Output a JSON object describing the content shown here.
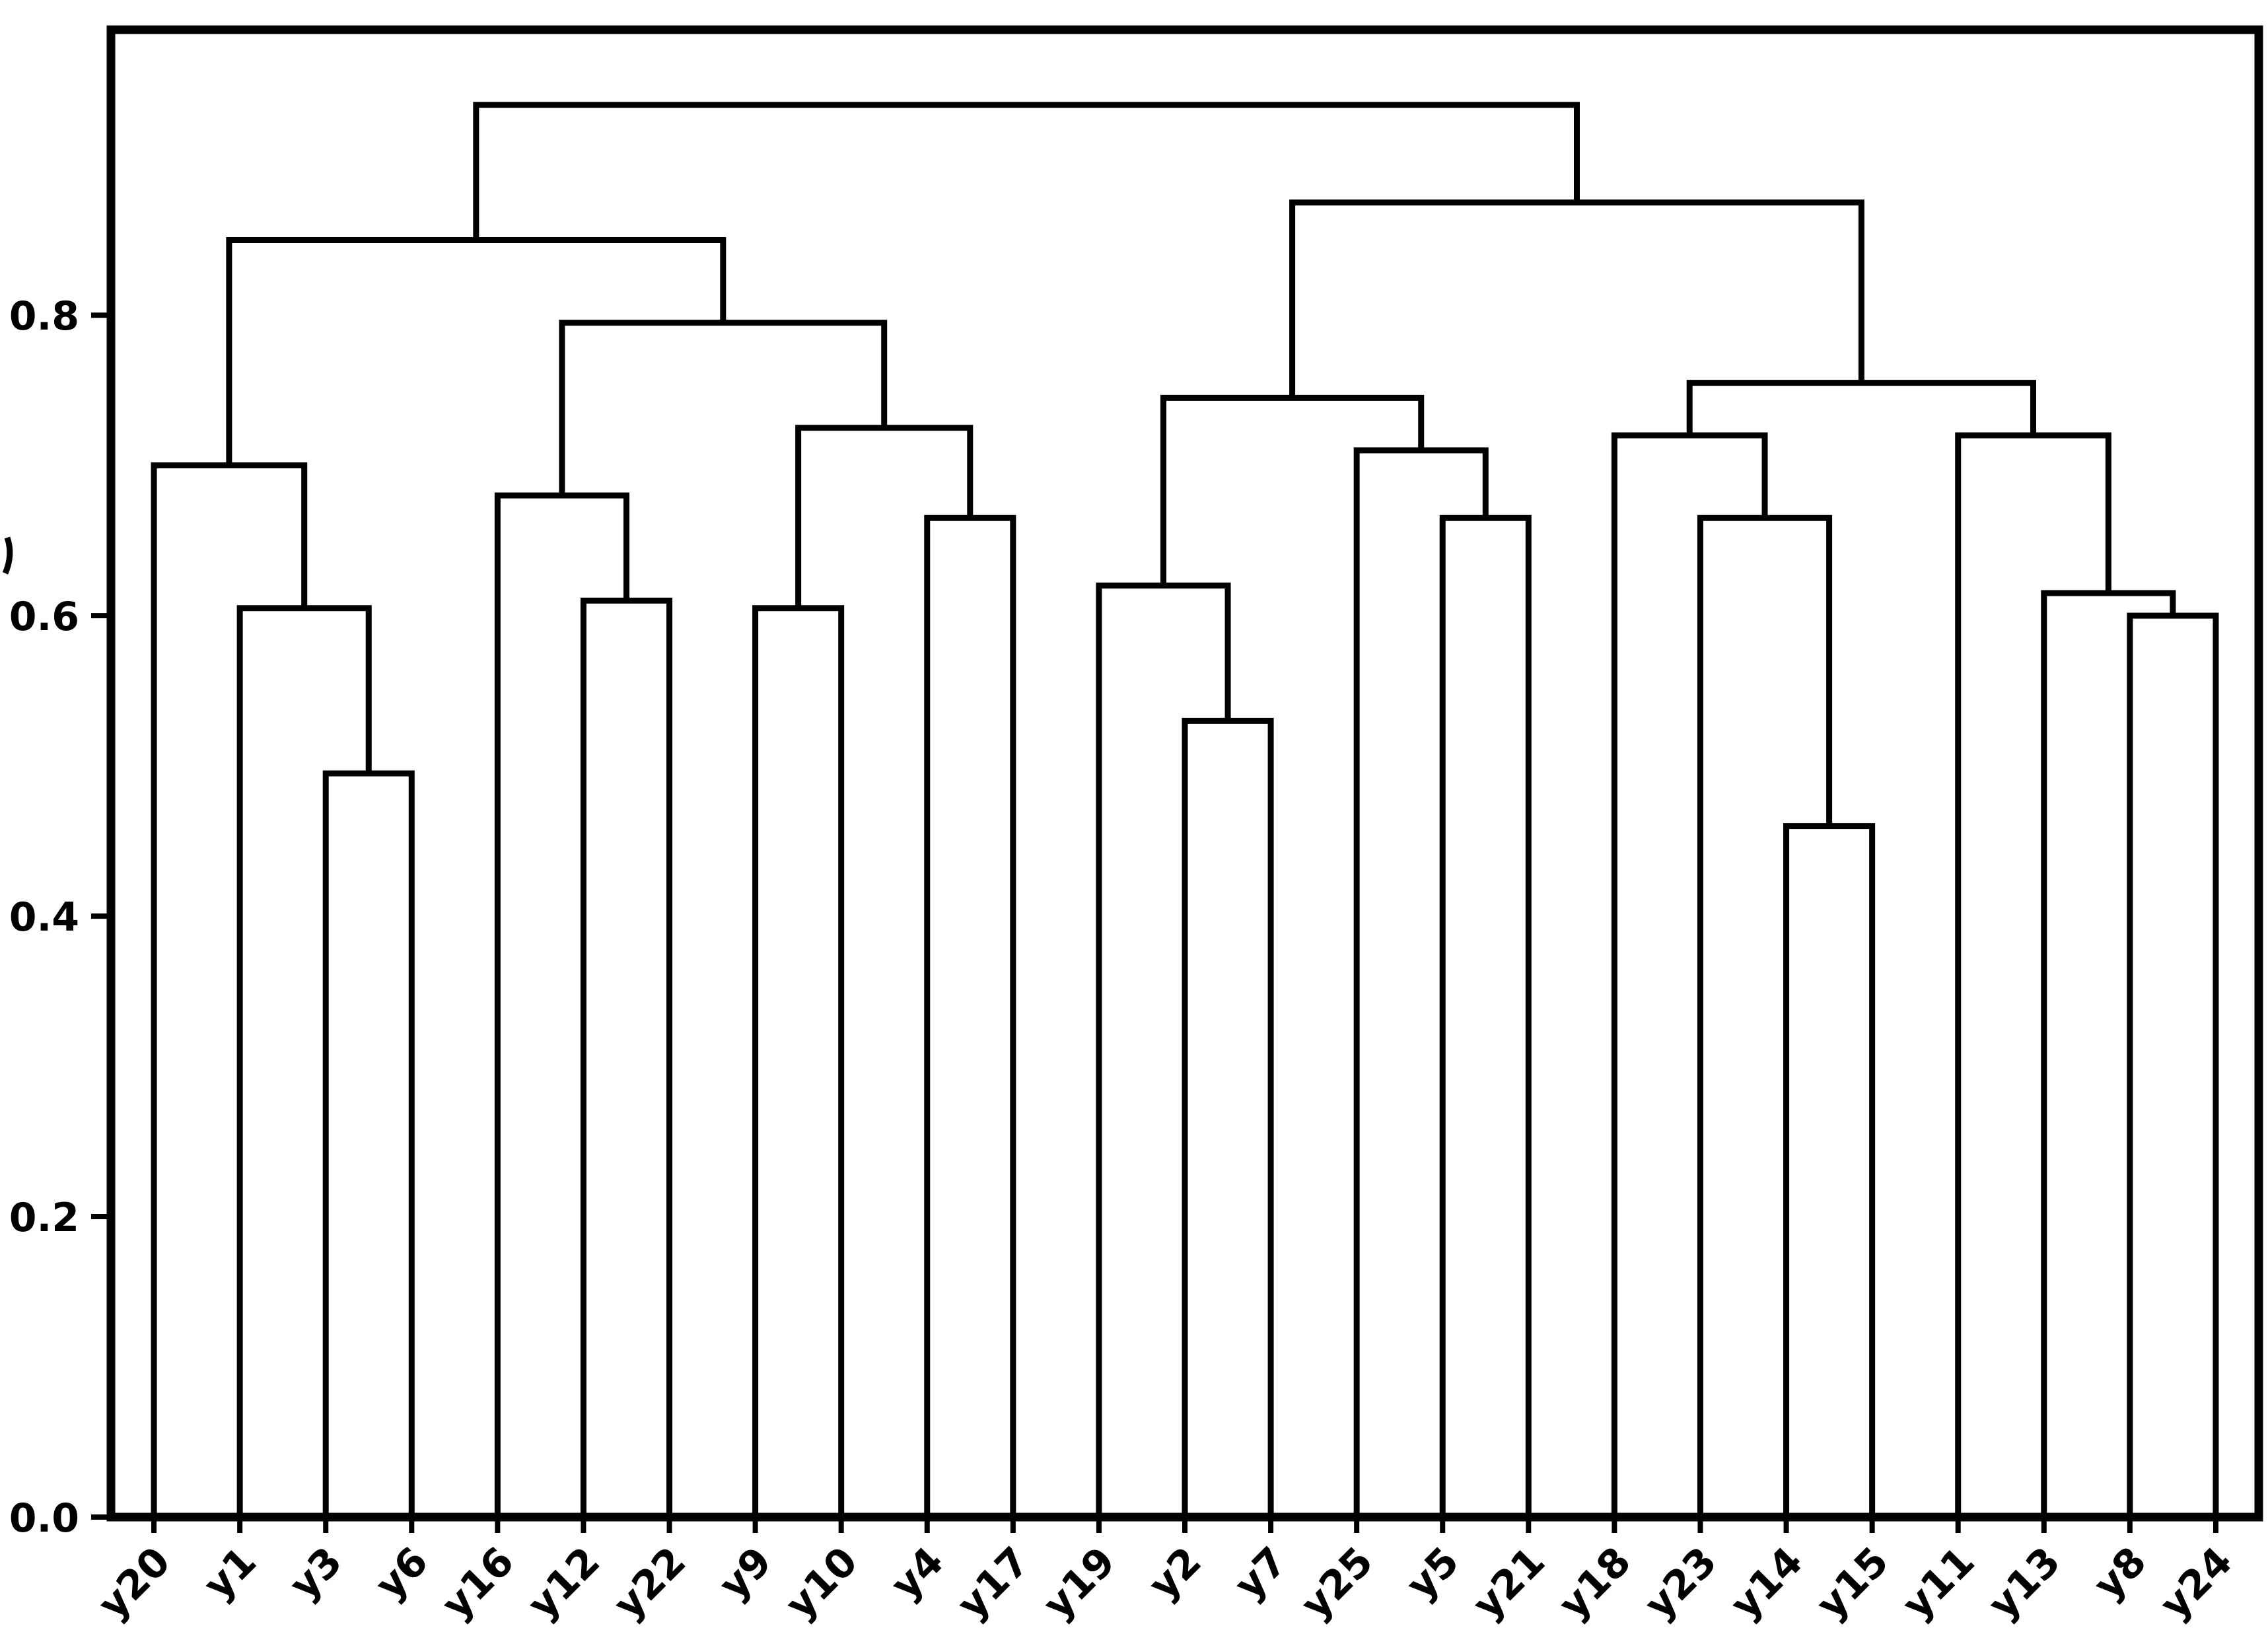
{
  "page": {
    "background": "#ffffff",
    "left_edge_artifact": "clipped glyph fragment at left margin near mid-height"
  },
  "chart_data": {
    "type": "dendrogram",
    "title": "",
    "xlabel": "",
    "ylabel": "",
    "grid": "off",
    "legend": "none",
    "line_color": "#000000",
    "text_color": "#000000",
    "background_color": "#ffffff",
    "ylim": [
      0,
      0.99
    ],
    "yticks": [
      "0.0",
      "0.2",
      "0.4",
      "0.6",
      "0.8"
    ],
    "ytick_values": [
      0.0,
      0.2,
      0.4,
      0.6,
      0.8
    ],
    "leaves": [
      "y20",
      "y1",
      "y3",
      "y6",
      "y16",
      "y12",
      "y22",
      "y9",
      "y10",
      "y4",
      "y17",
      "y19",
      "y2",
      "y7",
      "y25",
      "y5",
      "y21",
      "y18",
      "y23",
      "y14",
      "y15",
      "y11",
      "y13",
      "y8",
      "y24"
    ],
    "merges": {
      "h": 0.94,
      "children": [
        {
          "h": 0.85,
          "children": [
            {
              "h": 0.7,
              "children": [
                {
                  "leaf": "y20"
                },
                {
                  "h": 0.605,
                  "children": [
                    {
                      "leaf": "y1"
                    },
                    {
                      "h": 0.495,
                      "children": [
                        {
                          "leaf": "y3"
                        },
                        {
                          "leaf": "y6"
                        }
                      ]
                    }
                  ]
                }
              ]
            },
            {
              "h": 0.795,
              "children": [
                {
                  "h": 0.68,
                  "children": [
                    {
                      "leaf": "y16"
                    },
                    {
                      "h": 0.61,
                      "children": [
                        {
                          "leaf": "y12"
                        },
                        {
                          "leaf": "y22"
                        }
                      ]
                    }
                  ]
                },
                {
                  "h": 0.725,
                  "children": [
                    {
                      "h": 0.605,
                      "children": [
                        {
                          "leaf": "y9"
                        },
                        {
                          "leaf": "y10"
                        }
                      ]
                    },
                    {
                      "h": 0.665,
                      "children": [
                        {
                          "leaf": "y4"
                        },
                        {
                          "leaf": "y17"
                        }
                      ]
                    }
                  ]
                }
              ]
            }
          ]
        },
        {
          "h": 0.875,
          "children": [
            {
              "h": 0.745,
              "children": [
                {
                  "h": 0.62,
                  "children": [
                    {
                      "leaf": "y19"
                    },
                    {
                      "h": 0.53,
                      "children": [
                        {
                          "leaf": "y2"
                        },
                        {
                          "leaf": "y7"
                        }
                      ]
                    }
                  ]
                },
                {
                  "h": 0.71,
                  "children": [
                    {
                      "leaf": "y25"
                    },
                    {
                      "h": 0.665,
                      "children": [
                        {
                          "leaf": "y5"
                        },
                        {
                          "leaf": "y21"
                        }
                      ]
                    }
                  ]
                }
              ]
            },
            {
              "h": 0.755,
              "children": [
                {
                  "h": 0.72,
                  "children": [
                    {
                      "leaf": "y18"
                    },
                    {
                      "h": 0.665,
                      "children": [
                        {
                          "leaf": "y23"
                        },
                        {
                          "h": 0.46,
                          "children": [
                            {
                              "leaf": "y14"
                            },
                            {
                              "leaf": "y15"
                            }
                          ]
                        }
                      ]
                    }
                  ]
                },
                {
                  "h": 0.72,
                  "children": [
                    {
                      "leaf": "y11"
                    },
                    {
                      "h": 0.615,
                      "children": [
                        {
                          "leaf": "y13"
                        },
                        {
                          "h": 0.6,
                          "children": [
                            {
                              "leaf": "y8"
                            },
                            {
                              "leaf": "y24"
                            }
                          ]
                        }
                      ]
                    }
                  ]
                }
              ]
            }
          ]
        }
      ]
    }
  }
}
